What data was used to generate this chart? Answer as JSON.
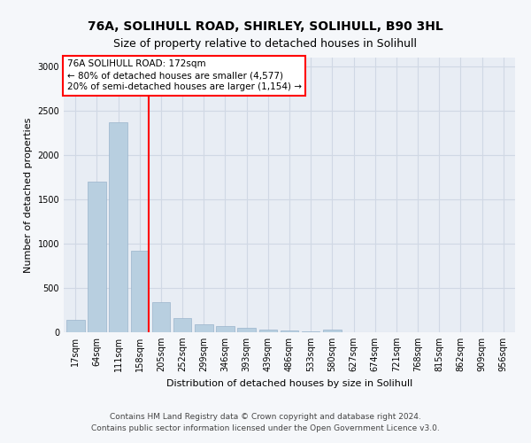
{
  "title": "76A, SOLIHULL ROAD, SHIRLEY, SOLIHULL, B90 3HL",
  "subtitle": "Size of property relative to detached houses in Solihull",
  "xlabel": "Distribution of detached houses by size in Solihull",
  "ylabel": "Number of detached properties",
  "bar_color_main": "#b8cfe0",
  "bar_color_light": "#ccdce8",
  "bar_edge_color": "#9ab4cc",
  "bg_fig": "#f5f7fa",
  "bg_ax": "#e8edf4",
  "grid_color": "#d0d8e4",
  "categories": [
    "17sqm",
    "64sqm",
    "111sqm",
    "158sqm",
    "205sqm",
    "252sqm",
    "299sqm",
    "346sqm",
    "393sqm",
    "439sqm",
    "486sqm",
    "533sqm",
    "580sqm",
    "627sqm",
    "674sqm",
    "721sqm",
    "768sqm",
    "815sqm",
    "862sqm",
    "909sqm",
    "956sqm"
  ],
  "values": [
    140,
    1700,
    2370,
    920,
    340,
    165,
    90,
    75,
    55,
    35,
    20,
    10,
    30,
    0,
    0,
    0,
    0,
    0,
    0,
    0,
    0
  ],
  "vline_position": 3.43,
  "ylim": [
    0,
    3100
  ],
  "yticks": [
    0,
    500,
    1000,
    1500,
    2000,
    2500,
    3000
  ],
  "annotation_text": "76A SOLIHULL ROAD: 172sqm\n← 80% of detached houses are smaller (4,577)\n20% of semi-detached houses are larger (1,154) →",
  "footnote1": "Contains HM Land Registry data © Crown copyright and database right 2024.",
  "footnote2": "Contains public sector information licensed under the Open Government Licence v3.0.",
  "title_fontsize": 10,
  "subtitle_fontsize": 9,
  "annotation_fontsize": 7.5,
  "axis_label_fontsize": 8,
  "tick_fontsize": 7,
  "footnote_fontsize": 6.5
}
